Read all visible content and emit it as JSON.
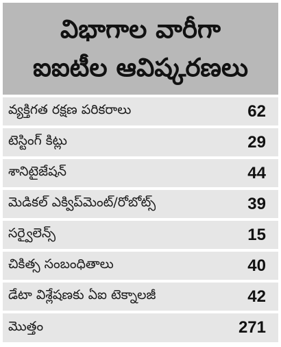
{
  "header": {
    "line1": "విభాగాల వారీగా",
    "line2": "ఐఐటీల ఆవిష్కరణలు"
  },
  "rows": [
    {
      "label": "వ్యక్తిగత రక్షణ పరికరాలు",
      "value": "62"
    },
    {
      "label": "టెస్టింగ్ కిట్లు",
      "value": "29"
    },
    {
      "label": "శానిటైజేషన్",
      "value": "44"
    },
    {
      "label": "మెడికల్ ఎక్విప్‌మెంట్/రోబోట్స్",
      "value": "39"
    },
    {
      "label": "సర్వైలెన్స్",
      "value": "15"
    },
    {
      "label": "చికిత్స సంబంధితాలు",
      "value": "40"
    },
    {
      "label": "డేటా విశ్లేషణకు ఏఐ టెక్నాలజీ",
      "value": "42"
    }
  ],
  "total": {
    "label": "మొత్తం",
    "value": "271"
  }
}
